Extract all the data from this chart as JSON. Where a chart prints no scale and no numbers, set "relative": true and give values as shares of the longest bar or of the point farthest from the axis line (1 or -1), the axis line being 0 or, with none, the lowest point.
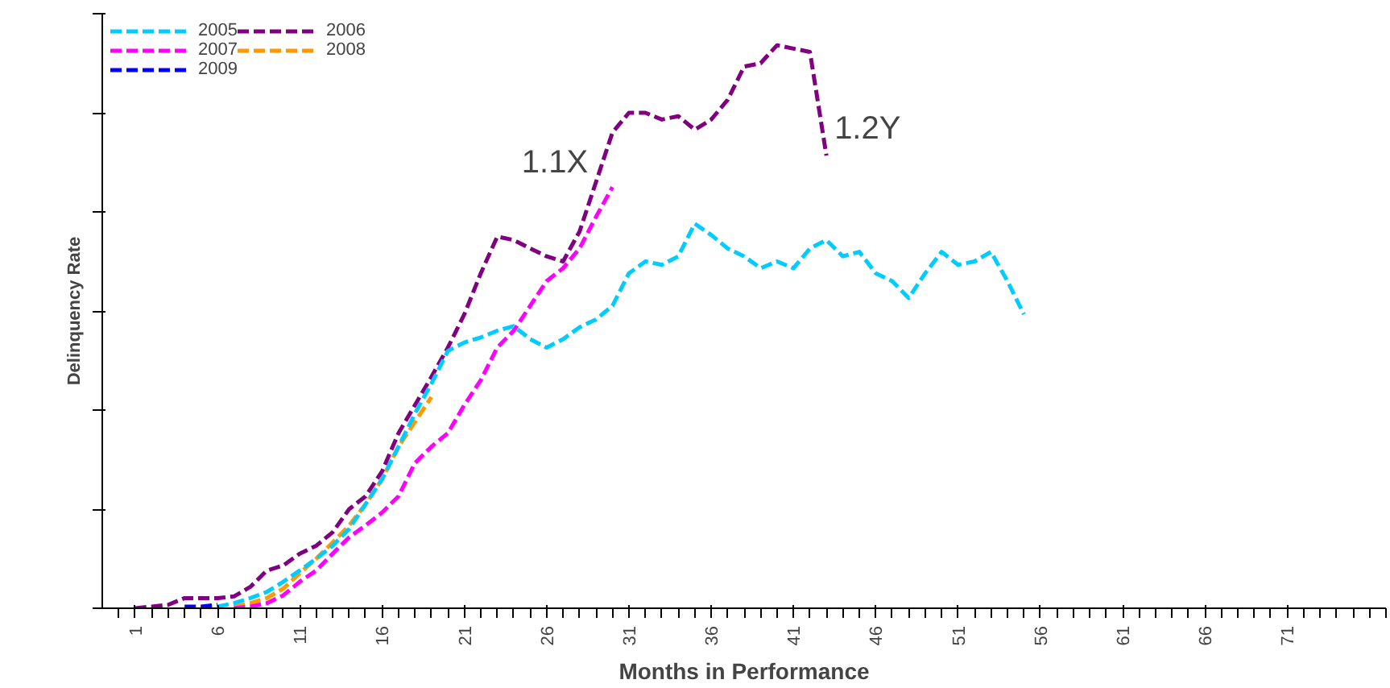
{
  "chart_data": {
    "type": "line",
    "xlabel": "Months in Performance",
    "ylabel": "Delinquency Rate",
    "relative": true,
    "xlim": [
      -1,
      77
    ],
    "xticks": [
      1,
      6,
      11,
      16,
      21,
      26,
      31,
      36,
      41,
      46,
      51,
      56,
      61,
      66,
      71
    ],
    "legend": "top left",
    "line_style": "dashed",
    "grid": false,
    "annotations": [
      "1.1X",
      "1.2Y"
    ],
    "series": [
      {
        "name": "2005",
        "color": "#00ccff",
        "x": [
          6,
          7,
          8,
          9,
          10,
          11,
          12,
          13,
          14,
          15,
          16,
          17,
          18,
          19,
          20,
          21,
          22,
          23,
          24,
          25,
          26,
          27,
          28,
          29,
          30,
          31,
          32,
          33,
          34,
          35,
          36,
          37,
          38,
          39,
          40,
          41,
          42,
          43,
          44,
          45,
          46,
          47,
          48,
          49,
          50,
          51,
          52,
          53,
          54,
          55
        ],
        "values": [
          0.003,
          0.009,
          0.018,
          0.029,
          0.047,
          0.067,
          0.088,
          0.111,
          0.141,
          0.185,
          0.229,
          0.287,
          0.346,
          0.399,
          0.457,
          0.472,
          0.481,
          0.493,
          0.501,
          0.478,
          0.463,
          0.478,
          0.499,
          0.513,
          0.537,
          0.595,
          0.616,
          0.61,
          0.625,
          0.683,
          0.663,
          0.639,
          0.625,
          0.604,
          0.616,
          0.604,
          0.639,
          0.654,
          0.625,
          0.633,
          0.595,
          0.581,
          0.551,
          0.595,
          0.633,
          0.61,
          0.616,
          0.633,
          0.581,
          0.522
        ]
      },
      {
        "name": "2006",
        "color": "#800080",
        "x": [
          1,
          2,
          3,
          4,
          5,
          6,
          7,
          8,
          9,
          10,
          11,
          12,
          13,
          14,
          15,
          16,
          17,
          18,
          19,
          20,
          21,
          22,
          23,
          24,
          25,
          26,
          27,
          28,
          29,
          30,
          31,
          32,
          33,
          34,
          35,
          36,
          37,
          38,
          39,
          40,
          41,
          42,
          43
        ],
        "values": [
          0,
          0.003,
          0.006,
          0.018,
          0.018,
          0.018,
          0.021,
          0.038,
          0.067,
          0.076,
          0.097,
          0.111,
          0.135,
          0.176,
          0.199,
          0.243,
          0.311,
          0.361,
          0.411,
          0.463,
          0.522,
          0.595,
          0.66,
          0.654,
          0.639,
          0.625,
          0.616,
          0.669,
          0.757,
          0.845,
          0.88,
          0.88,
          0.868,
          0.874,
          0.85,
          0.868,
          0.903,
          0.962,
          0.968,
          1.0,
          0.994,
          0.988,
          0.804
        ]
      },
      {
        "name": "2007",
        "color": "#ff00ff",
        "x": [
          7,
          8,
          9,
          10,
          11,
          12,
          13,
          14,
          15,
          16,
          17,
          18,
          19,
          20,
          21,
          22,
          23,
          24,
          25,
          26,
          27,
          28,
          29,
          30
        ],
        "values": [
          0,
          0.003,
          0.009,
          0.023,
          0.047,
          0.067,
          0.097,
          0.126,
          0.147,
          0.17,
          0.199,
          0.258,
          0.287,
          0.311,
          0.361,
          0.405,
          0.463,
          0.493,
          0.537,
          0.581,
          0.604,
          0.639,
          0.695,
          0.748
        ]
      },
      {
        "name": "2008",
        "color": "#ff9900",
        "x": [
          7,
          8,
          9,
          10,
          11,
          12,
          13,
          14,
          15,
          16,
          17,
          18,
          19
        ],
        "values": [
          0.003,
          0.009,
          0.018,
          0.035,
          0.062,
          0.088,
          0.117,
          0.147,
          0.185,
          0.229,
          0.287,
          0.331,
          0.375
        ]
      },
      {
        "name": "2009",
        "color": "#0000ff",
        "x": [
          4,
          5,
          6
        ],
        "values": [
          0.003,
          0.003,
          0.006
        ]
      }
    ]
  }
}
